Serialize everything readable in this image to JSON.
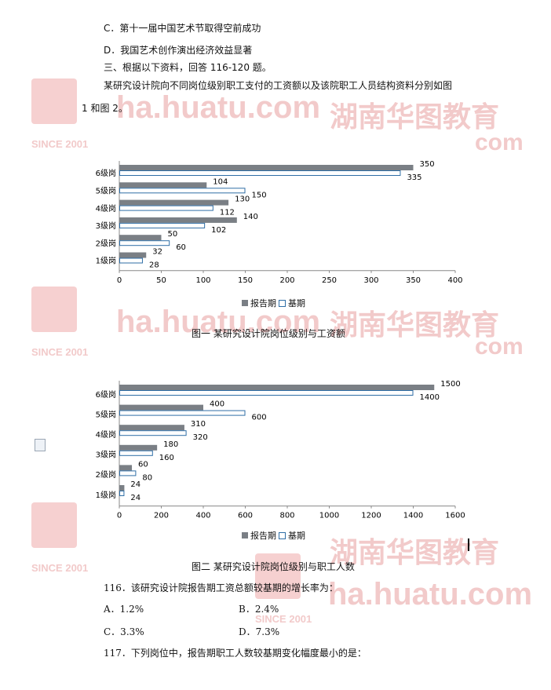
{
  "watermark": {
    "brand": "湖南华图教育",
    "url": "ha.huatu.com",
    "since": "SINCE 2001"
  },
  "text": {
    "option_c": "C．第十一届中国艺术节取得空前成功",
    "option_d": "D．我国艺术创作演出经济效益显著",
    "section3": "三、根据以下资料，回答 116-120 题。",
    "intro1": "某研究设计院向不同岗位级别职工支付的工资额以及该院职工人员结构资料分别如图",
    "intro2": "1 和图 2。",
    "q116": "116．该研究设计院报告期工资总额较基期的增长率为：",
    "q116_a": "A．1.2%",
    "q116_b": "B．2.4%",
    "q116_c": "C．3.3%",
    "q116_d": "D．7.3%",
    "q117": "117．下列岗位中，报告期职工人数较基期变化幅度最小的是："
  },
  "chart_data": [
    {
      "type": "bar",
      "orientation": "horizontal",
      "title": "图一      某研究设计院岗位级别与工资额",
      "categories": [
        "6级岗",
        "5级岗",
        "4级岗",
        "3级岗",
        "2级岗",
        "1级岗"
      ],
      "series": [
        {
          "name": "报告期",
          "values": [
            350,
            104,
            130,
            140,
            50,
            32
          ],
          "color": "#7a7f85"
        },
        {
          "name": "基期",
          "values": [
            335,
            150,
            112,
            102,
            60,
            28
          ],
          "color": "#ffffff",
          "stroke": "#2f6ea6"
        }
      ],
      "xticks": [
        "0",
        "50",
        "100",
        "150",
        "200",
        "250",
        "300",
        "350",
        "400"
      ],
      "xlim": [
        0,
        400
      ],
      "legend": "bottom",
      "grid": false
    },
    {
      "type": "bar",
      "orientation": "horizontal",
      "title": "图二      某研究设计院岗位级别与职工人数",
      "categories": [
        "6级岗",
        "5级岗",
        "4级岗",
        "3级岗",
        "2级岗",
        "1级岗"
      ],
      "series": [
        {
          "name": "报告期",
          "values": [
            1500,
            400,
            310,
            180,
            60,
            24
          ],
          "color": "#7a7f85"
        },
        {
          "name": "基期",
          "values": [
            1400,
            600,
            320,
            160,
            80,
            24
          ],
          "color": "#ffffff",
          "stroke": "#2f6ea6"
        }
      ],
      "xticks": [
        "0",
        "200",
        "400",
        "600",
        "800",
        "1000",
        "1200",
        "1400",
        "1600"
      ],
      "xlim": [
        0,
        1600
      ],
      "legend": "bottom",
      "grid": false
    }
  ]
}
